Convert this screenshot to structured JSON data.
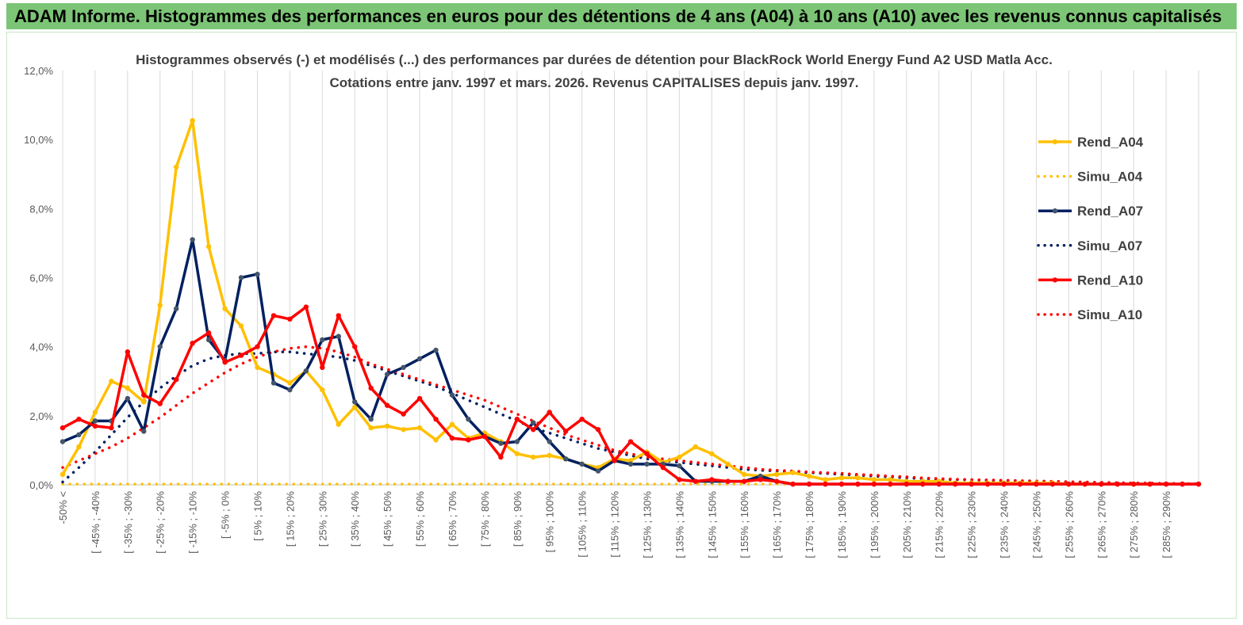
{
  "header": {
    "title": "ADAM Informe. Histogrammes des performances en euros pour des détentions de 4 ans (A04) à 10 ans (A10) avec les revenus connus capitalisés"
  },
  "chart_data": {
    "type": "line",
    "title_line1": "Histogrammes observés (-) et modélisés (...) des performances par durées de détention pour BlackRock World Energy Fund A2 USD Matla Acc.",
    "title_line2": "Cotations entre janv. 1997 et mars. 2026. Revenus CAPITALISES depuis janv. 1997.",
    "ylim": [
      0,
      12
    ],
    "yticks": [
      "0,0%",
      "2,0%",
      "4,0%",
      "6,0%",
      "8,0%",
      "10,0%",
      "12,0%"
    ],
    "xlabels": [
      "-50% <",
      "[ -45% ; -40%",
      "[ -35% ; -30%",
      "[ -25% ; -20%",
      "[ -15% ; -10%",
      "[ -5% ; 0%",
      "[ 5% ; 10%",
      "[ 15% ; 20%",
      "[ 25% ; 30%",
      "[ 35% ; 40%",
      "[ 45% ; 50%",
      "[ 55% ; 60%",
      "[ 65% ; 70%",
      "[ 75% ; 80%",
      "[ 85% ; 90%",
      "[ 95% ; 100%",
      "[ 105% ; 110%",
      "[ 115% ; 120%",
      "[ 125% ; 130%",
      "[ 135% ; 140%",
      "[ 145% ; 150%",
      "[ 155% ; 160%",
      "[ 165% ; 170%",
      "[ 175% ; 180%",
      "[ 185% ; 190%",
      "[ 195% ; 200%",
      "[ 205% ; 210%",
      "[ 215% ; 220%",
      "[ 225% ; 230%",
      "[ 235% ; 240%",
      "[ 245% ; 250%",
      "[ 255% ; 260%",
      "[ 265% ; 270%",
      "[ 275% ; 280%",
      "[ 285% ; 290%"
    ],
    "n_categories": 71,
    "series": [
      {
        "name": "Rend_A04",
        "color": "#ffc000",
        "style": "solid",
        "markers": true,
        "values": [
          0.3,
          1.1,
          2.1,
          3.0,
          2.8,
          2.4,
          5.2,
          9.2,
          10.55,
          6.9,
          5.1,
          4.6,
          3.4,
          3.2,
          2.95,
          3.3,
          2.75,
          1.75,
          2.25,
          1.65,
          1.7,
          1.6,
          1.65,
          1.3,
          1.75,
          1.35,
          1.5,
          1.25,
          0.9,
          0.8,
          0.85,
          0.75,
          0.6,
          0.5,
          0.75,
          0.7,
          0.95,
          0.65,
          0.8,
          1.1,
          0.9,
          0.6,
          0.3,
          0.25,
          0.3,
          0.35,
          0.25,
          0.15,
          0.2,
          0.2,
          0.15,
          0.15,
          0.1,
          0.1,
          0.1,
          0.05,
          0.05,
          0.05,
          0.05,
          0.05,
          0.05,
          0.05,
          0.02,
          0.02,
          0.02,
          0.02,
          0.02,
          0.02,
          0.02,
          0.02,
          0.02
        ]
      },
      {
        "name": "Simu_A04",
        "color": "#ffc000",
        "style": "dotted",
        "markers": false,
        "values": [
          0.02,
          0.02,
          0.02,
          0.02,
          0.02,
          0.02,
          0.02,
          0.02,
          0.02,
          0.02,
          0.02,
          0.02,
          0.02,
          0.02,
          0.02,
          0.02,
          0.02,
          0.02,
          0.02,
          0.02,
          0.02,
          0.02,
          0.02,
          0.02,
          0.02,
          0.02,
          0.02,
          0.02,
          0.02,
          0.02,
          0.02,
          0.02,
          0.02,
          0.02,
          0.02,
          0.02,
          0.02,
          0.02,
          0.02,
          0.02,
          0.02,
          0.02,
          0.02,
          0.02,
          0.02,
          0.02,
          0.02,
          0.02,
          0.02,
          0.02,
          0.02,
          0.02,
          0.02,
          0.02,
          0.02,
          0.02,
          0.02,
          0.02,
          0.02,
          0.02,
          0.02,
          0.02,
          0.02,
          0.02,
          0.02,
          0.02,
          0.02,
          0.02,
          0.02,
          0.02,
          0.02
        ]
      },
      {
        "name": "Rend_A07",
        "color": "#002060",
        "style": "solid",
        "markers": true,
        "values": [
          1.25,
          1.45,
          1.85,
          1.85,
          2.5,
          1.55,
          4.0,
          5.1,
          7.1,
          4.2,
          3.6,
          6.0,
          6.1,
          2.95,
          2.75,
          3.3,
          4.2,
          4.3,
          2.4,
          1.9,
          3.2,
          3.4,
          3.65,
          3.9,
          2.6,
          1.9,
          1.4,
          1.2,
          1.25,
          1.8,
          1.25,
          0.75,
          0.6,
          0.4,
          0.7,
          0.6,
          0.6,
          0.6,
          0.55,
          0.1,
          0.1,
          0.1,
          0.1,
          0.25,
          0.1,
          0.02,
          0.02,
          0.02,
          0.02,
          0.02,
          0.02,
          0.02,
          0.02,
          0.02,
          0.02,
          0.02,
          0.02,
          0.02,
          0.02,
          0.02,
          0.02,
          0.02,
          0.02,
          0.02,
          0.02,
          0.02,
          0.02,
          0.02,
          0.02,
          0.02,
          0.02
        ]
      },
      {
        "name": "Simu_A07",
        "color": "#002060",
        "style": "dotted",
        "markers": false,
        "values": [
          0.08,
          0.5,
          0.95,
          1.45,
          1.95,
          2.4,
          2.8,
          3.15,
          3.45,
          3.65,
          3.75,
          3.8,
          3.8,
          3.85,
          3.85,
          3.8,
          3.75,
          3.7,
          3.6,
          3.45,
          3.3,
          3.15,
          3.0,
          2.85,
          2.65,
          2.45,
          2.25,
          2.05,
          1.85,
          1.65,
          1.5,
          1.35,
          1.2,
          1.05,
          0.95,
          0.85,
          0.75,
          0.7,
          0.65,
          0.6,
          0.55,
          0.5,
          0.45,
          0.42,
          0.4,
          0.37,
          0.35,
          0.33,
          0.3,
          0.28,
          0.25,
          0.23,
          0.2,
          0.18,
          0.16,
          0.15,
          0.14,
          0.13,
          0.12,
          0.11,
          0.1,
          0.09,
          0.08,
          0.07,
          0.06,
          0.05,
          0.05,
          0.04,
          0.04,
          0.03,
          0.03
        ]
      },
      {
        "name": "Rend_A10",
        "color": "#ff0000",
        "style": "solid",
        "markers": true,
        "values": [
          1.65,
          1.9,
          1.7,
          1.65,
          3.85,
          2.6,
          2.35,
          3.05,
          4.1,
          4.4,
          3.55,
          3.75,
          4.0,
          4.9,
          4.8,
          5.15,
          3.4,
          4.9,
          4.0,
          2.8,
          2.3,
          2.05,
          2.5,
          1.9,
          1.35,
          1.3,
          1.4,
          0.8,
          1.9,
          1.6,
          2.1,
          1.55,
          1.9,
          1.6,
          0.7,
          1.25,
          0.9,
          0.5,
          0.15,
          0.1,
          0.15,
          0.1,
          0.1,
          0.15,
          0.1,
          0.02,
          0.02,
          0.02,
          0.02,
          0.02,
          0.02,
          0.02,
          0.02,
          0.02,
          0.02,
          0.02,
          0.02,
          0.02,
          0.02,
          0.02,
          0.02,
          0.02,
          0.02,
          0.02,
          0.02,
          0.02,
          0.02,
          0.02,
          0.02,
          0.02,
          0.02
        ]
      },
      {
        "name": "Simu_A10",
        "color": "#ff0000",
        "style": "dotted",
        "markers": false,
        "values": [
          0.5,
          0.7,
          0.9,
          1.1,
          1.35,
          1.65,
          1.95,
          2.3,
          2.65,
          2.95,
          3.25,
          3.5,
          3.7,
          3.85,
          3.95,
          4.0,
          3.95,
          3.85,
          3.7,
          3.5,
          3.35,
          3.2,
          3.05,
          2.9,
          2.75,
          2.6,
          2.45,
          2.25,
          2.05,
          1.85,
          1.65,
          1.45,
          1.3,
          1.15,
          1.0,
          0.9,
          0.8,
          0.75,
          0.7,
          0.65,
          0.6,
          0.55,
          0.5,
          0.45,
          0.42,
          0.4,
          0.37,
          0.35,
          0.33,
          0.3,
          0.28,
          0.25,
          0.23,
          0.2,
          0.18,
          0.16,
          0.15,
          0.14,
          0.13,
          0.12,
          0.11,
          0.1,
          0.09,
          0.08,
          0.07,
          0.06,
          0.05,
          0.05,
          0.04,
          0.04,
          0.03
        ]
      }
    ]
  }
}
